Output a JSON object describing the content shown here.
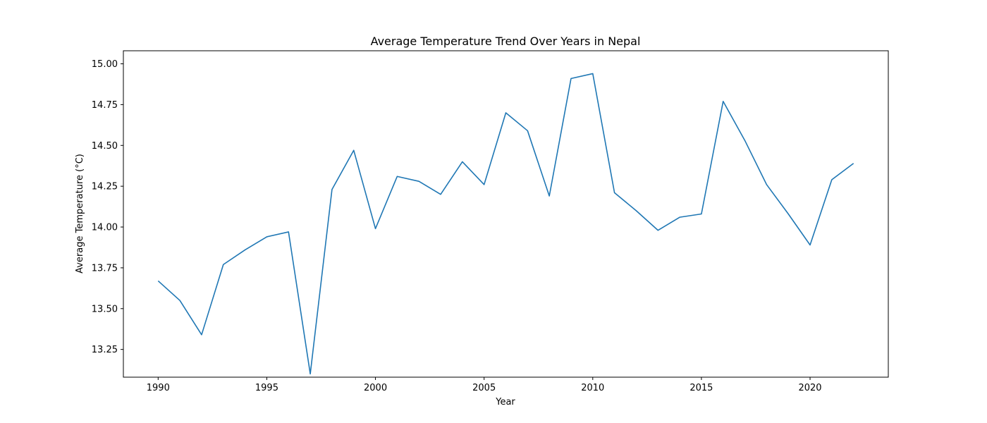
{
  "chart_data": {
    "type": "line",
    "title": "Average Temperature Trend Over Years in Nepal",
    "xlabel": "Year",
    "ylabel": "Average Temperature (°C)",
    "xlim": [
      1988.4,
      2023.6
    ],
    "ylim": [
      13.08,
      15.08
    ],
    "x_ticks": [
      1990,
      1995,
      2000,
      2005,
      2010,
      2015,
      2020
    ],
    "y_ticks": [
      13.25,
      13.5,
      13.75,
      14.0,
      14.25,
      14.5,
      14.75,
      15.0
    ],
    "y_tick_labels": [
      "13.25",
      "13.50",
      "13.75",
      "14.00",
      "14.25",
      "14.50",
      "14.75",
      "15.00"
    ],
    "grid": false,
    "series": [
      {
        "color": "#1f77b4",
        "x": [
          1990,
          1991,
          1992,
          1993,
          1994,
          1995,
          1996,
          1997,
          1998,
          1999,
          2000,
          2001,
          2002,
          2003,
          2004,
          2005,
          2006,
          2007,
          2008,
          2009,
          2010,
          2011,
          2012,
          2013,
          2014,
          2015,
          2016,
          2017,
          2018,
          2019,
          2020,
          2021,
          2022
        ],
        "y": [
          13.67,
          13.55,
          13.34,
          13.77,
          13.86,
          13.94,
          13.97,
          13.1,
          14.23,
          14.47,
          13.99,
          14.31,
          14.28,
          14.2,
          14.4,
          14.26,
          14.7,
          14.59,
          14.19,
          14.91,
          14.94,
          14.21,
          14.1,
          13.98,
          14.06,
          14.08,
          14.77,
          14.53,
          14.26,
          14.08,
          13.89,
          14.29,
          14.39
        ]
      }
    ]
  }
}
